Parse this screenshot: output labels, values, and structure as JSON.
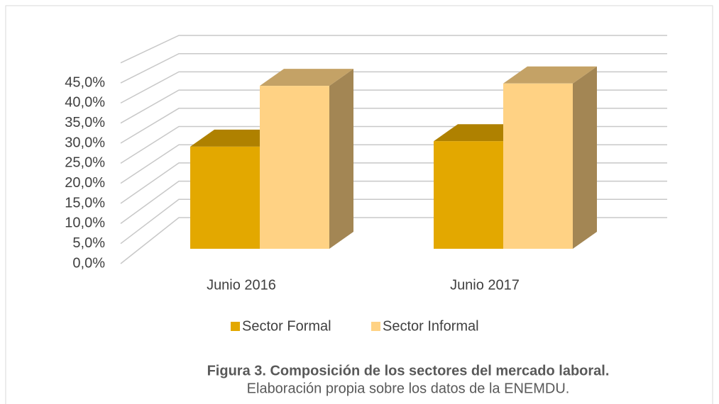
{
  "chart_data": {
    "type": "bar3d",
    "title": "Figura 3. Composición de los sectores del  mercado laboral.",
    "subtitle": "Elaboración propia sobre los datos de la ENEMDU.",
    "categories": [
      "Junio 2016",
      "Junio 2017"
    ],
    "series": [
      {
        "name": "Sector Formal",
        "color": "#E3A800",
        "values": [
          26.2,
          27.6
        ]
      },
      {
        "name": "Sector Informal",
        "color": "#FFD284",
        "values": [
          41.8,
          42.4
        ]
      }
    ],
    "ylim": [
      0,
      50
    ],
    "yticks": [
      {
        "value": 0,
        "label": "0,0%"
      },
      {
        "value": 5,
        "label": "5,0%"
      },
      {
        "value": 10,
        "label": "10,0%"
      },
      {
        "value": 15,
        "label": "15,0%"
      },
      {
        "value": 20,
        "label": "20,0%"
      },
      {
        "value": 25,
        "label": "25,0%"
      },
      {
        "value": 30,
        "label": "30,0%"
      },
      {
        "value": 35,
        "label": "35,0%"
      },
      {
        "value": 40,
        "label": "40,0%"
      },
      {
        "value": 45,
        "label": "45,0%"
      }
    ],
    "grid": true,
    "legend": "bottom"
  }
}
